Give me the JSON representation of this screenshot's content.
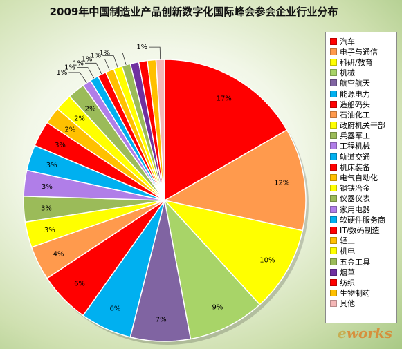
{
  "chart_data": {
    "type": "pie",
    "title": "2009年中国制造业产品创新数字化国际峰会参会企业行业分布",
    "unit": "%",
    "categories": [
      "汽车",
      "电子与通信",
      "科研/教育",
      "机械",
      "航空航天",
      "能源电力",
      "造船码头",
      "石油化工",
      "政府机关干部",
      "兵器军工",
      "工程机械",
      "轨道交通",
      "机床装备",
      "电气自动化",
      "钢铁冶金",
      "仪器仪表",
      "家用电器",
      "软硬件服务商",
      "IT/数码制造",
      "轻工",
      "机电",
      "五金工具",
      "烟草",
      "纺织",
      "生物制药",
      "其他"
    ],
    "values": [
      17,
      12,
      10,
      9,
      7,
      6,
      6,
      4,
      3,
      3,
      3,
      3,
      3,
      2,
      2,
      2,
      1,
      1,
      1,
      1,
      1,
      1,
      1,
      1,
      1,
      1
    ],
    "data_labels": [
      "17%",
      "12%",
      "10%",
      "9%",
      "7%",
      "6%",
      "6%",
      "4%",
      "3%",
      "3%",
      "3%",
      "3%",
      "3%",
      "2%",
      "2%",
      "2%",
      "1%",
      "1%",
      "1%",
      "1%",
      "1%",
      "1%",
      "",
      "",
      "",
      "1%"
    ],
    "colors": [
      "#ff0000",
      "#ff9a4d",
      "#ffff00",
      "#a8d468",
      "#8064a2",
      "#00b0f0",
      "#ff0000",
      "#ff9a4d",
      "#ffff00",
      "#9bbb59",
      "#b07ee8",
      "#00b0f0",
      "#ff0000",
      "#ffc000",
      "#ffff00",
      "#9bbb59",
      "#b07ee8",
      "#00b0f0",
      "#ff0000",
      "#ffc000",
      "#ffff00",
      "#9bbb59",
      "#7030a0",
      "#ff0000",
      "#ffc000",
      "#f4b6b6"
    ],
    "legend_position": "right"
  },
  "watermark": {
    "prefix": "e",
    "suffix": "works"
  }
}
